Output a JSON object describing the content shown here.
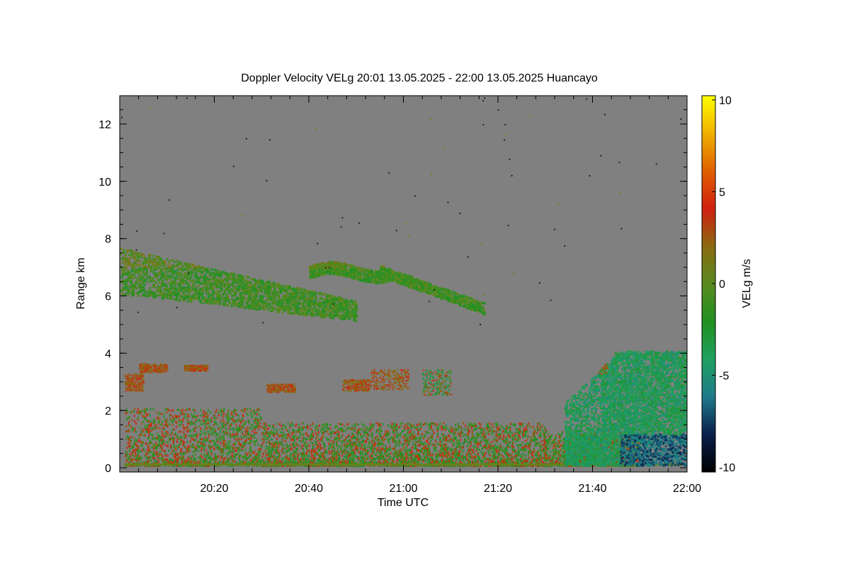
{
  "chart_data": {
    "type": "heatmap",
    "title": "Doppler Velocity VELg   20:01 13.05.2025 - 22:00 13.05.2025 Huancayo",
    "xlabel": "Time UTC",
    "ylabel": "Range km",
    "xlim": [
      "20:01",
      "22:00"
    ],
    "ylim": [
      0,
      13
    ],
    "x_ticks": [
      "20:20",
      "20:40",
      "21:00",
      "21:20",
      "21:40",
      "22:00"
    ],
    "y_ticks": [
      "0",
      "2",
      "4",
      "6",
      "8",
      "10",
      "12"
    ],
    "colorbar": {
      "label": "VELg m/s",
      "range": [
        -10,
        10
      ],
      "ticks": [
        "10",
        "5",
        "0",
        "-5",
        "-10"
      ],
      "colors": [
        "#000000",
        "#0a1f4a",
        "#1e7a8a",
        "#1fa060",
        "#209020",
        "#5a8a20",
        "#8a6a10",
        "#d02010",
        "#e06000",
        "#f0b000",
        "#ffff00"
      ]
    },
    "background_color": "#808080",
    "features": [
      {
        "name": "upper cloud layer",
        "time_range": [
          "20:01",
          "21:17"
        ],
        "range_km": [
          5.2,
          8.0
        ],
        "velocity_ms": -1
      },
      {
        "name": "mid-level echoes",
        "time_range": [
          "20:01",
          "21:11"
        ],
        "range_km": [
          2.5,
          3.7
        ],
        "velocity_ms": 2
      },
      {
        "name": "boundary layer",
        "time_range": [
          "20:01",
          "21:50"
        ],
        "range_km": [
          0.1,
          2.1
        ],
        "velocity_ms": 0
      },
      {
        "name": "precipitation",
        "time_range": [
          "21:34",
          "22:00"
        ],
        "range_km": [
          0.1,
          4.1
        ],
        "velocity_ms": -6
      }
    ]
  }
}
